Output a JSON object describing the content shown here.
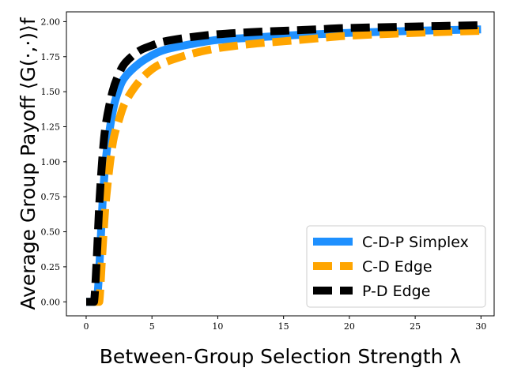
{
  "chart_data": {
    "type": "line",
    "xlabel": "Between-Group Selection Strength λ",
    "ylabel": "Average Group Payoff ⟨G(·,·)⟩f",
    "xlim": [
      -1.5,
      31
    ],
    "ylim": [
      -0.1,
      2.07
    ],
    "xticks": [
      0,
      5,
      10,
      15,
      20,
      25,
      30
    ],
    "yticks": [
      0.0,
      0.25,
      0.5,
      0.75,
      1.0,
      1.25,
      1.5,
      1.75,
      2.0
    ],
    "xtick_labels": [
      "0",
      "5",
      "10",
      "15",
      "20",
      "25",
      "30"
    ],
    "ytick_labels": [
      "0.00",
      "0.25",
      "0.50",
      "0.75",
      "1.00",
      "1.25",
      "1.50",
      "1.75",
      "2.00"
    ],
    "legend_position": "lower-right",
    "series": [
      {
        "name": "C-D-P Simplex",
        "color": "#1e90ff",
        "style": "solid",
        "x": [
          0,
          0.5,
          0.8,
          1,
          1.25,
          1.5,
          2,
          2.5,
          3,
          4,
          5,
          6,
          8,
          10,
          12.5,
          15,
          17.5,
          20,
          25,
          30
        ],
        "y": [
          0.0,
          0.0,
          0.0,
          0.24,
          0.72,
          1.02,
          1.35,
          1.52,
          1.61,
          1.7,
          1.76,
          1.8,
          1.84,
          1.87,
          1.885,
          1.9,
          1.91,
          1.92,
          1.935,
          1.945
        ]
      },
      {
        "name": "C-D Edge",
        "color": "#ffa500",
        "style": "dashed",
        "x": [
          0.5,
          0.8,
          1,
          1.2,
          1.5,
          2,
          2.5,
          3,
          4,
          5,
          6,
          8,
          10,
          12.5,
          15,
          17.5,
          20,
          25,
          30
        ],
        "y": [
          0.0,
          0.0,
          0.0,
          0.3,
          0.72,
          1.12,
          1.3,
          1.43,
          1.57,
          1.66,
          1.71,
          1.77,
          1.81,
          1.84,
          1.86,
          1.88,
          1.9,
          1.92,
          1.935
        ]
      },
      {
        "name": "P-D Edge",
        "color": "#000000",
        "style": "dashed",
        "x": [
          0,
          0.4,
          0.6,
          0.8,
          1,
          1.25,
          1.5,
          2,
          2.5,
          3,
          4,
          5,
          6,
          8,
          10,
          12.5,
          15,
          17.5,
          20,
          25,
          30
        ],
        "y": [
          0.0,
          0.0,
          0.0,
          0.3,
          0.7,
          1.05,
          1.27,
          1.5,
          1.63,
          1.71,
          1.79,
          1.83,
          1.86,
          1.89,
          1.91,
          1.925,
          1.935,
          1.945,
          1.955,
          1.965,
          1.975
        ]
      }
    ]
  }
}
